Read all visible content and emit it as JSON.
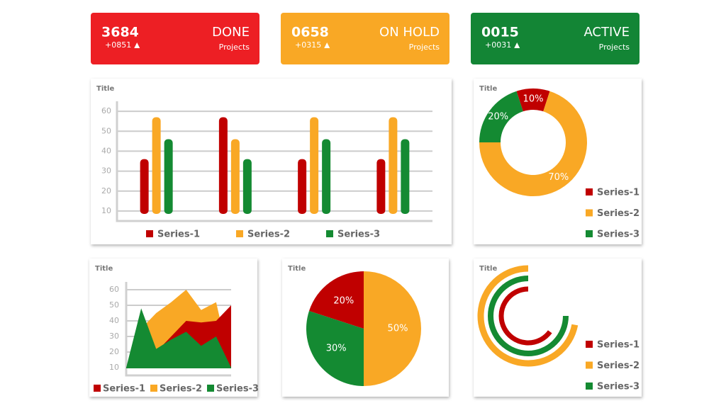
{
  "cards": [
    {
      "value": "3684",
      "change": "+0851",
      "label": "DONE",
      "unit": "Projects",
      "color": "#ed1f24"
    },
    {
      "value": "0658",
      "change": "+0315",
      "label": "ON HOLD",
      "unit": "Projects",
      "color": "#f9a825"
    },
    {
      "value": "0015",
      "change": "+0031",
      "label": "ACTIVE",
      "unit": "Projects",
      "color": "#138535"
    }
  ],
  "chart_data": [
    {
      "type": "bar",
      "title": "Title",
      "categories": [
        null,
        null,
        null,
        null
      ],
      "series": [
        {
          "name": "Series-1",
          "color": "#c00000",
          "values": [
            36,
            57,
            36,
            36
          ]
        },
        {
          "name": "Series-2",
          "color": "#f9a825",
          "values": [
            57,
            46,
            57,
            57
          ]
        },
        {
          "name": "Series-3",
          "color": "#148a32",
          "values": [
            46,
            36,
            46,
            46
          ]
        }
      ],
      "ylim": [
        5,
        65
      ],
      "yticks": [
        10,
        20,
        30,
        40,
        50,
        60
      ],
      "grid": true
    },
    {
      "type": "donut",
      "title": "Title",
      "categories": [
        "Series-1",
        "Series-2",
        "Series-3"
      ],
      "values": [
        10,
        70,
        20
      ],
      "value_labels": [
        "10%",
        "70%",
        "20%"
      ],
      "colors": [
        "#c00000",
        "#f9a825",
        "#148a32"
      ]
    },
    {
      "type": "area",
      "title": "Title",
      "categories": [
        null,
        null,
        null,
        null,
        null,
        null,
        null,
        null
      ],
      "series": [
        {
          "name": "Series-1",
          "color": "#c00000",
          "values": [
            10,
            22,
            20,
            30,
            40,
            39,
            40,
            50
          ]
        },
        {
          "name": "Series-2",
          "color": "#f9a825",
          "values": [
            10,
            35,
            45,
            52,
            60,
            47,
            52,
            10
          ]
        },
        {
          "name": "Series-3",
          "color": "#148a32",
          "values": [
            10,
            48,
            22,
            28,
            33,
            24,
            30,
            10
          ]
        }
      ],
      "ylim": [
        5,
        65
      ],
      "yticks": [
        10,
        20,
        30,
        40,
        50,
        60
      ],
      "grid": true
    },
    {
      "type": "pie",
      "title": "Title",
      "categories": [
        "Series-1",
        "Series-2",
        "Series-3"
      ],
      "values": [
        20,
        50,
        30
      ],
      "value_labels": [
        "20%",
        "50%",
        "30%"
      ],
      "colors": [
        "#c00000",
        "#f9a825",
        "#148a32"
      ]
    },
    {
      "type": "radial-bar",
      "title": "Title",
      "categories": [
        "Series-1",
        "Series-2",
        "Series-3"
      ],
      "values": [
        65,
        72,
        75
      ],
      "colors": [
        "#c00000",
        "#f9a825",
        "#148a32"
      ],
      "ylim": [
        0,
        100
      ]
    }
  ]
}
